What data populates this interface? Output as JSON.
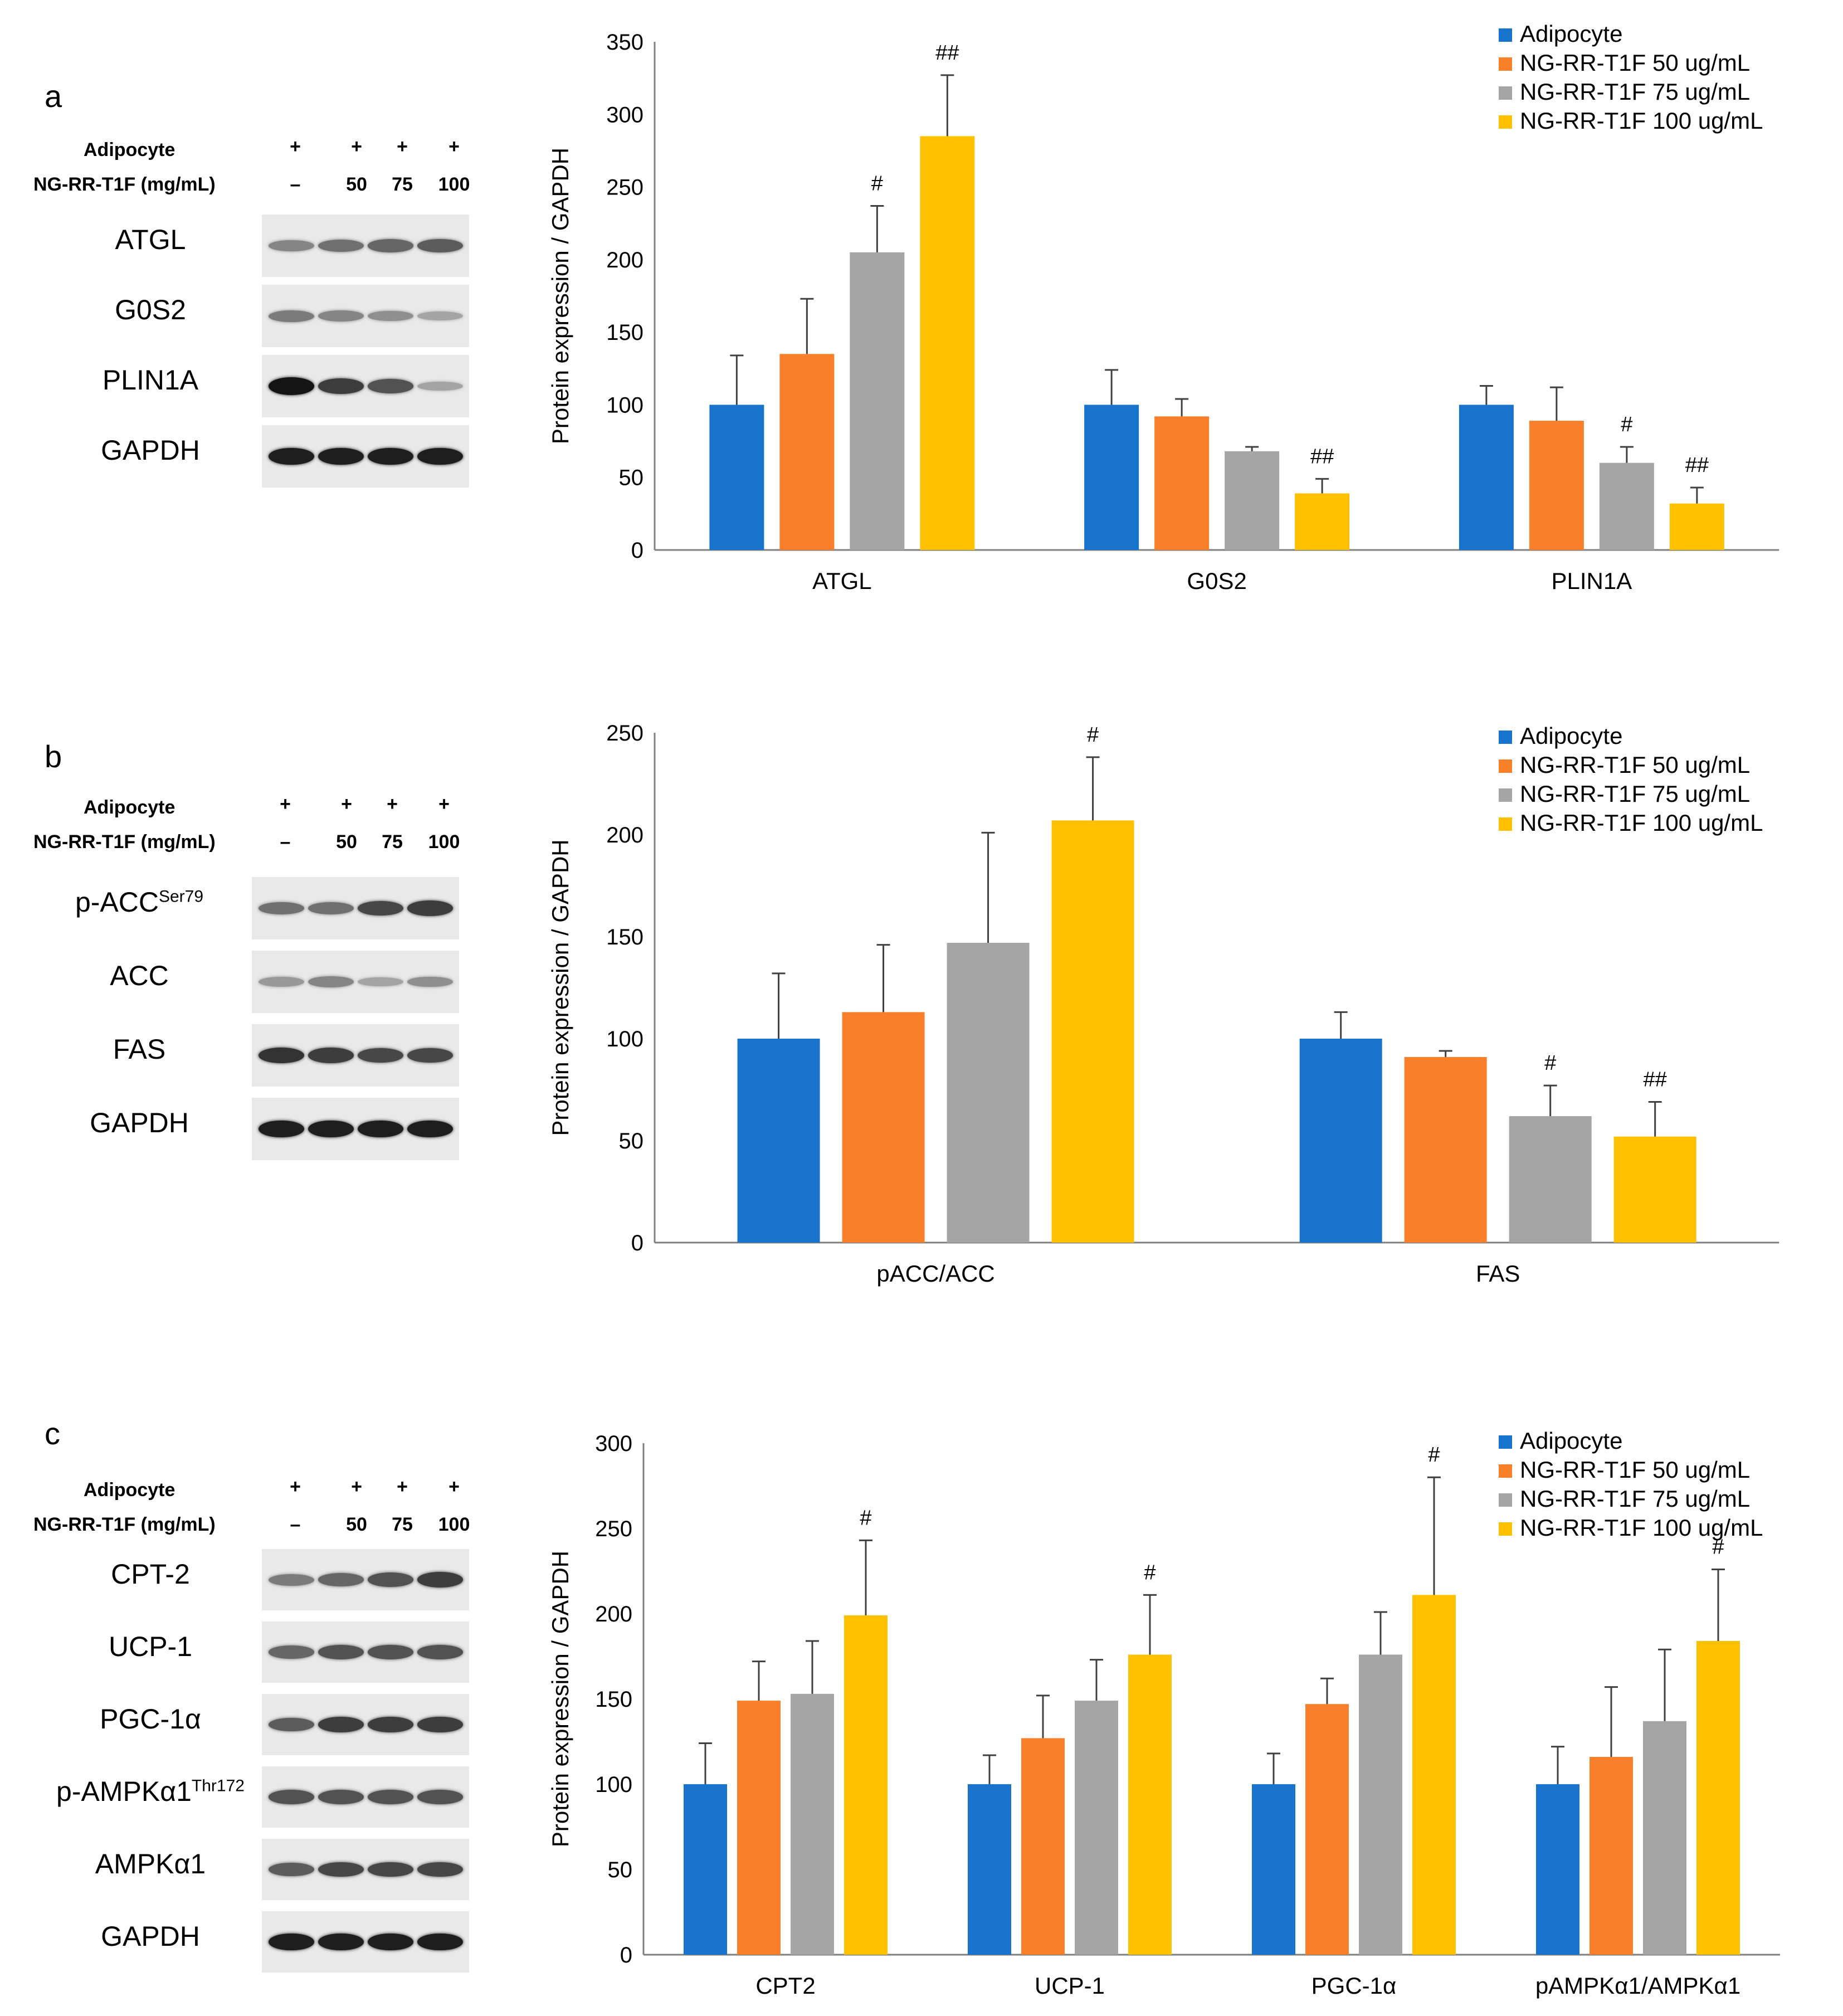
{
  "panels": [
    {
      "id": "a",
      "label": "a",
      "blot": {
        "conditions": [
          {
            "label": "Adipocyte",
            "values": [
              "+",
              "+",
              "+",
              "+"
            ]
          },
          {
            "label": "NG-RR-T1F (mg/mL)",
            "values": [
              "–",
              "50",
              "75",
              "100"
            ]
          }
        ],
        "bands": [
          {
            "label": "ATGL",
            "sup": "",
            "intensity": [
              0.45,
              0.55,
              0.6,
              0.65
            ]
          },
          {
            "label": "G0S2",
            "sup": "",
            "intensity": [
              0.5,
              0.45,
              0.4,
              0.3
            ]
          },
          {
            "label": "PLIN1A",
            "sup": "",
            "intensity": [
              1.0,
              0.8,
              0.7,
              0.3
            ]
          },
          {
            "label": "GAPDH",
            "sup": "",
            "intensity": [
              0.95,
              0.95,
              0.95,
              0.95
            ]
          }
        ]
      }
    },
    {
      "id": "b",
      "label": "b",
      "blot": {
        "conditions": [
          {
            "label": "Adipocyte",
            "values": [
              "+",
              "+",
              "+",
              "+"
            ]
          },
          {
            "label": "NG-RR-T1F (mg/mL)",
            "values": [
              "–",
              "50",
              "75",
              "100"
            ]
          }
        ],
        "bands": [
          {
            "label": "p-ACC",
            "sup": "Ser79",
            "intensity": [
              0.55,
              0.55,
              0.75,
              0.8
            ]
          },
          {
            "label": "ACC",
            "sup": "",
            "intensity": [
              0.35,
              0.45,
              0.3,
              0.4
            ]
          },
          {
            "label": "FAS",
            "sup": "",
            "intensity": [
              0.85,
              0.8,
              0.75,
              0.75
            ]
          },
          {
            "label": "GAPDH",
            "sup": "",
            "intensity": [
              0.95,
              0.95,
              0.95,
              0.95
            ]
          }
        ]
      }
    },
    {
      "id": "c",
      "label": "c",
      "blot": {
        "conditions": [
          {
            "label": "Adipocyte",
            "values": [
              "+",
              "+",
              "+",
              "+"
            ]
          },
          {
            "label": "NG-RR-T1F (mg/mL)",
            "values": [
              "–",
              "50",
              "75",
              "100"
            ]
          }
        ],
        "bands": [
          {
            "label": "CPT-2",
            "sup": "",
            "intensity": [
              0.5,
              0.6,
              0.7,
              0.8
            ]
          },
          {
            "label": "UCP-1",
            "sup": "",
            "intensity": [
              0.6,
              0.7,
              0.7,
              0.7
            ]
          },
          {
            "label": "PGC-1α",
            "sup": "",
            "intensity": [
              0.65,
              0.8,
              0.8,
              0.8
            ]
          },
          {
            "label": "p-AMPKα1",
            "sup": "Thr172",
            "intensity": [
              0.7,
              0.7,
              0.7,
              0.7
            ]
          },
          {
            "label": "AMPKα1",
            "sup": "",
            "intensity": [
              0.65,
              0.75,
              0.75,
              0.75
            ]
          },
          {
            "label": "GAPDH",
            "sup": "",
            "intensity": [
              0.95,
              0.95,
              0.95,
              0.95
            ]
          }
        ]
      }
    }
  ],
  "colors": {
    "series": [
      "#1873cc",
      "#fa7f2a",
      "#a5a5a5",
      "#ffc000"
    ],
    "axis": "#7f7f7f",
    "error": "#404040"
  },
  "chart_data": [
    {
      "type": "bar",
      "panel": "a",
      "ylabel": "Protein expression / GAPDH",
      "xlabel": "",
      "ylim": [
        0,
        350
      ],
      "yticks": [
        0,
        50,
        100,
        150,
        200,
        250,
        300,
        350
      ],
      "categories": [
        "ATGL",
        "G0S2",
        "PLIN1A"
      ],
      "legend_position": "top-right",
      "series": [
        {
          "name": "Adipocyte",
          "values": [
            100,
            100,
            100
          ],
          "errors": [
            34,
            24,
            13
          ],
          "marks": [
            "",
            "",
            ""
          ]
        },
        {
          "name": "NG-RR-T1F 50 ug/mL",
          "values": [
            135,
            92,
            89
          ],
          "errors": [
            38,
            12,
            23
          ],
          "marks": [
            "",
            "",
            ""
          ]
        },
        {
          "name": "NG-RR-T1F 75 ug/mL",
          "values": [
            205,
            68,
            60
          ],
          "errors": [
            32,
            3,
            11
          ],
          "marks": [
            "#",
            "",
            "#"
          ]
        },
        {
          "name": "NG-RR-T1F 100 ug/mL",
          "values": [
            285,
            39,
            32
          ],
          "errors": [
            42,
            10,
            11
          ],
          "marks": [
            "##",
            "##",
            "##"
          ]
        }
      ]
    },
    {
      "type": "bar",
      "panel": "b",
      "ylabel": "Protein expression / GAPDH",
      "xlabel": "",
      "ylim": [
        0,
        250
      ],
      "yticks": [
        0,
        50,
        100,
        150,
        200,
        250
      ],
      "categories": [
        "pACC/ACC",
        "FAS"
      ],
      "legend_position": "top-right",
      "series": [
        {
          "name": "Adipocyte",
          "values": [
            100,
            100
          ],
          "errors": [
            32,
            13
          ],
          "marks": [
            "",
            ""
          ]
        },
        {
          "name": "NG-RR-T1F 50 ug/mL",
          "values": [
            113,
            91
          ],
          "errors": [
            33,
            3
          ],
          "marks": [
            "",
            ""
          ]
        },
        {
          "name": "NG-RR-T1F 75 ug/mL",
          "values": [
            147,
            62
          ],
          "errors": [
            54,
            15
          ],
          "marks": [
            "",
            "#"
          ]
        },
        {
          "name": "NG-RR-T1F 100 ug/mL",
          "values": [
            207,
            52
          ],
          "errors": [
            31,
            17
          ],
          "marks": [
            "#",
            "##"
          ]
        }
      ]
    },
    {
      "type": "bar",
      "panel": "c",
      "ylabel": "Protein expression / GAPDH",
      "xlabel": "",
      "ylim": [
        0,
        300
      ],
      "yticks": [
        0,
        50,
        100,
        150,
        200,
        250,
        300
      ],
      "categories": [
        "CPT2",
        "UCP-1",
        "PGC-1α",
        "pAMPKα1/AMPKα1"
      ],
      "legend_position": "top-right",
      "series": [
        {
          "name": "Adipocyte",
          "values": [
            100,
            100,
            100,
            100
          ],
          "errors": [
            24,
            17,
            18,
            22
          ],
          "marks": [
            "",
            "",
            "",
            ""
          ]
        },
        {
          "name": "NG-RR-T1F 50 ug/mL",
          "values": [
            149,
            127,
            147,
            116
          ],
          "errors": [
            23,
            25,
            15,
            41
          ],
          "marks": [
            "",
            "",
            "",
            ""
          ]
        },
        {
          "name": "NG-RR-T1F 75 ug/mL",
          "values": [
            153,
            149,
            176,
            137
          ],
          "errors": [
            31,
            24,
            25,
            42
          ],
          "marks": [
            "",
            "",
            "",
            ""
          ]
        },
        {
          "name": "NG-RR-T1F 100 ug/mL",
          "values": [
            199,
            176,
            211,
            184
          ],
          "errors": [
            44,
            35,
            69,
            42
          ],
          "marks": [
            "#",
            "#",
            "#",
            "#"
          ]
        }
      ]
    }
  ]
}
